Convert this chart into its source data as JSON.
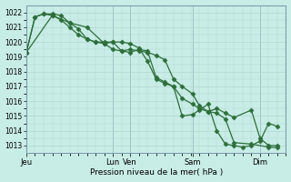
{
  "background_color": "#c8ece6",
  "grid_color": "#b0d8d0",
  "line_color": "#2d6e3a",
  "xlabel": "Pression niveau de la mer( hPa )",
  "ylim": [
    1012.5,
    1022.5
  ],
  "yticks": [
    1013,
    1014,
    1015,
    1016,
    1017,
    1018,
    1019,
    1020,
    1021,
    1022
  ],
  "day_labels": [
    "Jeu",
    "Lun",
    "Ven",
    "Sam",
    "Dim"
  ],
  "day_positions": [
    0,
    100,
    120,
    192,
    270
  ],
  "xlim": [
    0,
    300
  ],
  "series1": {
    "x": [
      0,
      10,
      20,
      30,
      40,
      50,
      60,
      70,
      80,
      90,
      100,
      110,
      120,
      130,
      140,
      150,
      160,
      170,
      180,
      192,
      200,
      210,
      220,
      230,
      240,
      260,
      270,
      280,
      290
    ],
    "y": [
      1019.3,
      1021.7,
      1021.9,
      1021.8,
      1021.5,
      1021.0,
      1020.5,
      1020.2,
      1020.0,
      1019.9,
      1019.5,
      1019.4,
      1019.5,
      1019.4,
      1019.3,
      1019.1,
      1018.8,
      1017.5,
      1017.0,
      1016.5,
      1015.7,
      1015.3,
      1015.5,
      1015.2,
      1014.9,
      1015.4,
      1013.5,
      1013.0,
      1013.0
    ]
  },
  "series2": {
    "x": [
      0,
      10,
      20,
      30,
      40,
      50,
      60,
      70,
      80,
      90,
      100,
      110,
      120,
      130,
      140,
      150,
      160,
      170,
      180,
      192,
      200,
      210,
      220,
      230,
      240,
      260,
      280,
      290
    ],
    "y": [
      1019.3,
      1021.7,
      1021.9,
      1021.9,
      1021.8,
      1021.3,
      1020.9,
      1020.2,
      1020.0,
      1020.0,
      1020.0,
      1020.0,
      1019.9,
      1019.6,
      1018.7,
      1017.5,
      1017.2,
      1017.0,
      1016.2,
      1015.8,
      1015.5,
      1015.3,
      1015.2,
      1014.8,
      1013.2,
      1013.1,
      1012.9,
      1012.85
    ]
  },
  "series3": {
    "x": [
      0,
      30,
      50,
      70,
      90,
      100,
      110,
      120,
      130,
      140,
      150,
      160,
      170,
      180,
      192,
      200,
      210,
      220,
      230,
      240,
      250,
      260,
      270,
      280,
      290
    ],
    "y": [
      1019.3,
      1021.8,
      1021.3,
      1021.0,
      1019.9,
      1020.0,
      1019.4,
      1019.3,
      1019.5,
      1019.4,
      1017.6,
      1017.3,
      1017.0,
      1015.0,
      1015.1,
      1015.4,
      1015.8,
      1014.0,
      1013.1,
      1013.0,
      1012.9,
      1013.0,
      1013.3,
      1014.5,
      1014.3
    ]
  }
}
